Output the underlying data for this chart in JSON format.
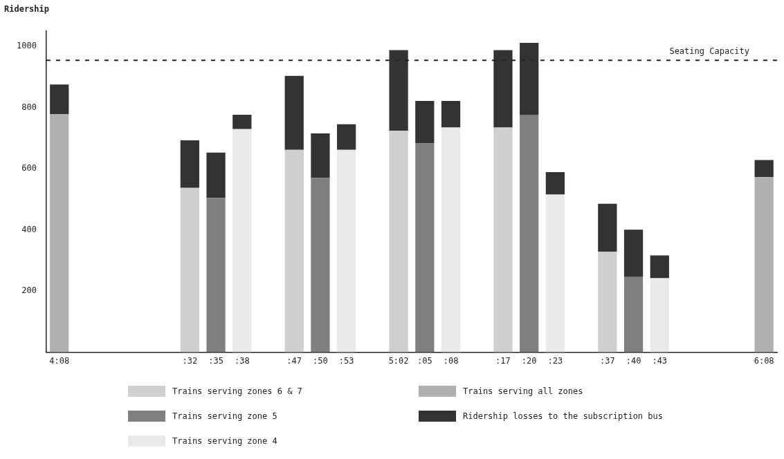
{
  "chart_data": {
    "type": "bar",
    "stacked": true,
    "ylabel": "Ridership",
    "ylim": [
      0,
      1050
    ],
    "yticks": [
      200,
      400,
      600,
      800,
      1000
    ],
    "grid": false,
    "legend": "bottom",
    "line_style": "dashed",
    "categories": [
      "4:08",
      null,
      null,
      null,
      null,
      ":32",
      ":35",
      ":38",
      null,
      ":47",
      ":50",
      ":53",
      null,
      "5:02",
      ":05",
      ":08",
      null,
      ":17",
      ":20",
      ":23",
      null,
      ":37",
      ":40",
      ":43",
      null,
      null,
      null,
      "6:08"
    ],
    "series": [
      {
        "name": "Trains serving zones 6 & 7",
        "color": "#cfcfcf",
        "values": [
          null,
          null,
          null,
          null,
          null,
          538,
          null,
          null,
          null,
          662,
          null,
          null,
          null,
          725,
          null,
          null,
          null,
          735,
          null,
          null,
          null,
          329,
          null,
          null,
          null,
          null,
          null,
          null
        ]
      },
      {
        "name": "Trains serving zone 5",
        "color": "#808080",
        "values": [
          null,
          null,
          null,
          null,
          null,
          null,
          505,
          null,
          null,
          null,
          570,
          null,
          null,
          null,
          683,
          null,
          null,
          null,
          777,
          null,
          null,
          null,
          246,
          null,
          null,
          null,
          null,
          null
        ]
      },
      {
        "name": "Trains serving zone 4",
        "color": "#eaeaea",
        "values": [
          null,
          null,
          null,
          null,
          null,
          null,
          null,
          730,
          null,
          null,
          null,
          662,
          null,
          null,
          null,
          735,
          null,
          null,
          null,
          516,
          null,
          null,
          null,
          242,
          null,
          null,
          null,
          null
        ]
      },
      {
        "name": "Trains serving all zones",
        "color": "#b0b0b0",
        "values": [
          779,
          null,
          null,
          null,
          null,
          null,
          null,
          null,
          null,
          null,
          null,
          null,
          null,
          null,
          null,
          null,
          null,
          null,
          null,
          null,
          null,
          null,
          null,
          null,
          null,
          null,
          null,
          573
        ]
      },
      {
        "name": "Ridership losses to the subscription bus",
        "color": "#333333",
        "values": [
          97,
          null,
          null,
          null,
          null,
          155,
          148,
          47,
          null,
          242,
          146,
          84,
          null,
          263,
          139,
          87,
          null,
          253,
          235,
          73,
          null,
          157,
          155,
          75,
          null,
          null,
          null,
          56
        ]
      }
    ],
    "ref_lines": [
      {
        "axis": "y",
        "value": 955,
        "label": "Seating Capacity"
      }
    ]
  }
}
